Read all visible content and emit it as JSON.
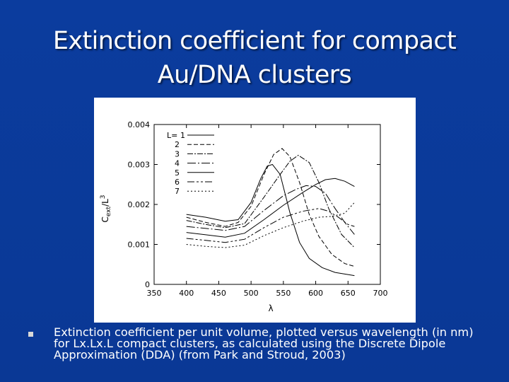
{
  "slide": {
    "title_lines": [
      "Extinction coefficient for compact",
      "Au/DNA clusters"
    ],
    "bullet": "Extinction coefficient per unit volume, plotted versus wavelength (in nm) for Lx.Lx.L compact clusters, as calculated using the Discrete Dipole Approximation (DDA) (from Park and Stroud, 2003)"
  },
  "colors": {
    "background": "#0a3a9a",
    "title": "#ffffff",
    "plot_line": "#000000"
  },
  "chart_data": {
    "type": "line",
    "xlabel": "λ",
    "ylabel": "C_ext/L^3",
    "xlim": [
      350,
      700
    ],
    "ylim": [
      0,
      0.004
    ],
    "x_ticks": [
      "350",
      "400",
      "450",
      "500",
      "550",
      "600",
      "650",
      "700"
    ],
    "y_ticks": [
      "0",
      "0.001",
      "0.002",
      "0.003",
      "0.004"
    ],
    "legend_title": "L=",
    "legend_position": "top-left",
    "grid": false,
    "series": [
      {
        "name": "1",
        "dash": "solid",
        "points": [
          [
            400,
            0.00175
          ],
          [
            430,
            0.00168
          ],
          [
            460,
            0.00158
          ],
          [
            480,
            0.00162
          ],
          [
            500,
            0.00205
          ],
          [
            515,
            0.00265
          ],
          [
            525,
            0.00296
          ],
          [
            533,
            0.003
          ],
          [
            545,
            0.00275
          ],
          [
            560,
            0.0018
          ],
          [
            575,
            0.00105
          ],
          [
            590,
            0.00065
          ],
          [
            610,
            0.00042
          ],
          [
            630,
            0.0003
          ],
          [
            660,
            0.00022
          ]
        ]
      },
      {
        "name": "2",
        "dash": "6 3",
        "points": [
          [
            400,
            0.00168
          ],
          [
            430,
            0.00155
          ],
          [
            460,
            0.00145
          ],
          [
            480,
            0.00155
          ],
          [
            500,
            0.00195
          ],
          [
            520,
            0.00275
          ],
          [
            535,
            0.00325
          ],
          [
            548,
            0.0034
          ],
          [
            560,
            0.0032
          ],
          [
            575,
            0.00255
          ],
          [
            590,
            0.00175
          ],
          [
            605,
            0.0012
          ],
          [
            625,
            0.00075
          ],
          [
            645,
            0.00052
          ],
          [
            660,
            0.00045
          ]
        ]
      },
      {
        "name": "3",
        "dash": "8 2 2 2",
        "points": [
          [
            400,
            0.0016
          ],
          [
            430,
            0.0015
          ],
          [
            460,
            0.00142
          ],
          [
            490,
            0.00152
          ],
          [
            520,
            0.00218
          ],
          [
            545,
            0.00275
          ],
          [
            560,
            0.00308
          ],
          [
            573,
            0.00323
          ],
          [
            590,
            0.00305
          ],
          [
            605,
            0.00255
          ],
          [
            620,
            0.0019
          ],
          [
            640,
            0.00125
          ],
          [
            660,
            0.00092
          ]
        ]
      },
      {
        "name": "4",
        "dash": "12 3 2 3",
        "points": [
          [
            400,
            0.00145
          ],
          [
            430,
            0.0014
          ],
          [
            460,
            0.00135
          ],
          [
            490,
            0.00145
          ],
          [
            520,
            0.00185
          ],
          [
            550,
            0.00222
          ],
          [
            570,
            0.00238
          ],
          [
            585,
            0.00247
          ],
          [
            600,
            0.00245
          ],
          [
            615,
            0.00228
          ],
          [
            630,
            0.0019
          ],
          [
            645,
            0.00155
          ],
          [
            660,
            0.00125
          ]
        ]
      },
      {
        "name": "5",
        "dash": "solid",
        "points": [
          [
            400,
            0.0013
          ],
          [
            430,
            0.00124
          ],
          [
            460,
            0.00118
          ],
          [
            490,
            0.00128
          ],
          [
            520,
            0.00162
          ],
          [
            550,
            0.00198
          ],
          [
            580,
            0.0023
          ],
          [
            600,
            0.0025
          ],
          [
            615,
            0.00262
          ],
          [
            630,
            0.00265
          ],
          [
            645,
            0.00258
          ],
          [
            660,
            0.00245
          ]
        ]
      },
      {
        "name": "6",
        "dash": "10 3 3 3 3 3",
        "points": [
          [
            400,
            0.00115
          ],
          [
            430,
            0.0011
          ],
          [
            460,
            0.00105
          ],
          [
            490,
            0.00113
          ],
          [
            520,
            0.00142
          ],
          [
            550,
            0.00168
          ],
          [
            580,
            0.00183
          ],
          [
            605,
            0.0019
          ],
          [
            620,
            0.00183
          ],
          [
            635,
            0.00168
          ],
          [
            650,
            0.0015
          ],
          [
            660,
            0.00145
          ]
        ]
      },
      {
        "name": "7",
        "dash": "2 3",
        "points": [
          [
            400,
            0.001
          ],
          [
            430,
            0.00095
          ],
          [
            460,
            0.00092
          ],
          [
            490,
            0.00098
          ],
          [
            520,
            0.00122
          ],
          [
            550,
            0.00142
          ],
          [
            580,
            0.00158
          ],
          [
            605,
            0.00168
          ],
          [
            625,
            0.0017
          ],
          [
            645,
            0.00178
          ],
          [
            660,
            0.00205
          ]
        ]
      }
    ]
  }
}
